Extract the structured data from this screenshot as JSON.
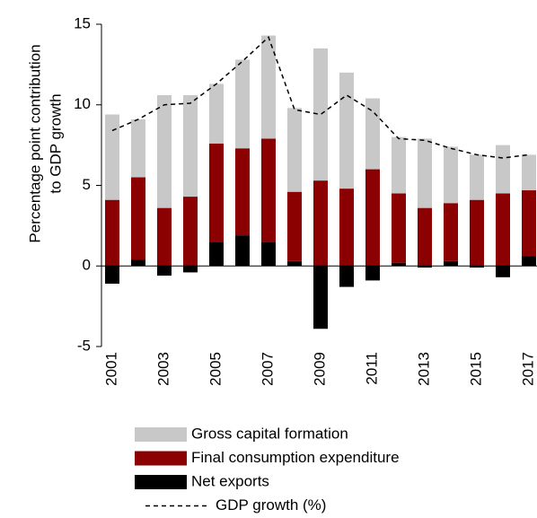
{
  "chart_data": {
    "type": "bar",
    "stacked": true,
    "ylabel": [
      "Percentage point contribution",
      "to GDP growth"
    ],
    "categories": [
      "2001",
      null,
      "2003",
      null,
      "2005",
      null,
      "2007",
      null,
      "2009",
      null,
      "2011",
      null,
      "2013",
      null,
      "2015",
      null,
      "2017"
    ],
    "series": [
      {
        "name": "Net exports",
        "color": "#000000",
        "values": [
          -1.1,
          0.4,
          -0.6,
          -0.4,
          1.5,
          1.9,
          1.5,
          0.3,
          -3.9,
          -1.3,
          -0.9,
          0.2,
          -0.1,
          0.3,
          -0.1,
          -0.7,
          0.6
        ]
      },
      {
        "name": "Final consumption expenditure",
        "color": "#8b0000",
        "values": [
          4.1,
          5.1,
          3.6,
          4.3,
          6.1,
          5.4,
          6.4,
          4.3,
          5.3,
          4.8,
          6.0,
          4.3,
          3.6,
          3.6,
          4.1,
          4.5,
          4.1
        ]
      },
      {
        "name": "Gross capital formation",
        "color": "#c8c8c8",
        "values": [
          5.3,
          3.6,
          7.0,
          6.3,
          3.7,
          5.5,
          6.4,
          5.2,
          8.2,
          7.2,
          4.4,
          3.5,
          4.3,
          3.5,
          2.8,
          3.0,
          2.2
        ]
      }
    ],
    "line": {
      "name": "GDP growth (%)",
      "color": "#000000",
      "dashed": true,
      "values": [
        8.4,
        9.1,
        10.0,
        10.1,
        11.3,
        12.7,
        14.2,
        9.7,
        9.4,
        10.6,
        9.6,
        7.9,
        7.8,
        7.3,
        6.9,
        6.7,
        6.9
      ]
    },
    "ylim": [
      -5,
      15
    ],
    "yticks": [
      -5,
      0,
      5,
      10,
      15
    ]
  }
}
